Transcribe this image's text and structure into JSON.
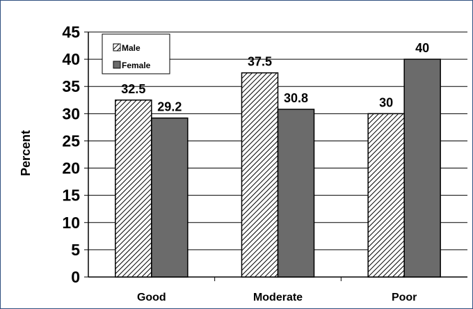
{
  "chart_data": {
    "type": "bar",
    "ylabel": "Percent",
    "ylim": [
      0,
      45
    ],
    "yticks": [
      0,
      5,
      10,
      15,
      20,
      25,
      30,
      35,
      40,
      45
    ],
    "grid": true,
    "legend_position": "top-left",
    "categories": [
      "Good",
      "Moderate",
      "Poor"
    ],
    "series": [
      {
        "name": "Male",
        "values": [
          32.5,
          37.5,
          30
        ],
        "labels": [
          "32.5",
          "37.5",
          "30"
        ],
        "pattern": "diagonal-hatch",
        "color": "#ffffff"
      },
      {
        "name": "Female",
        "values": [
          29.2,
          30.8,
          40
        ],
        "labels": [
          "29.2",
          "30.8",
          "40"
        ],
        "pattern": "solid",
        "color": "#6b6b6b"
      }
    ]
  }
}
